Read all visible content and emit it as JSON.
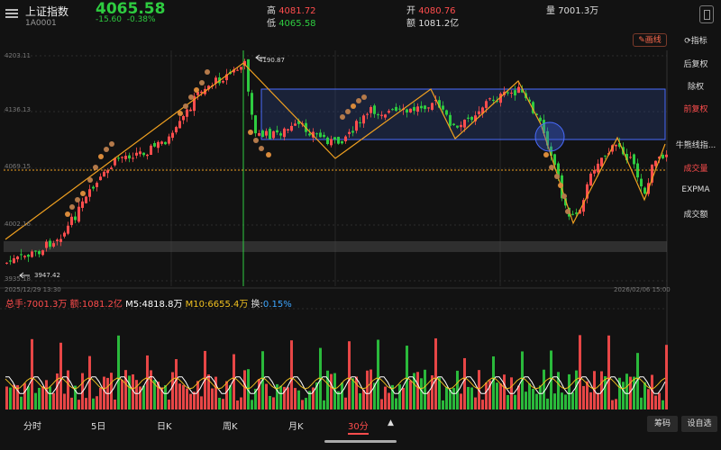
{
  "header": {
    "title": "上证指数",
    "code": "1A0001",
    "price": "4065.58",
    "change": "-15.60",
    "change_pct": "-0.38%",
    "high_label": "高",
    "high": "4081.72",
    "low_label": "低",
    "low": "4065.58",
    "open_label": "开",
    "open": "4080.76",
    "amount_label": "额",
    "amount": "1081.2亿",
    "volume_label": "量",
    "volume": "7001.3万"
  },
  "toolbar": {
    "draw_label": "画线"
  },
  "sidebar": {
    "indicator_label": "指标",
    "items": [
      {
        "label": "后复权",
        "active": false
      },
      {
        "label": "除权",
        "active": false
      },
      {
        "label": "前复权",
        "active": true
      },
      {
        "label": "牛熊线指...",
        "active": false
      },
      {
        "label": "成交量",
        "active": true
      },
      {
        "label": "EXPMA",
        "active": false
      },
      {
        "label": "成交额",
        "active": false
      }
    ]
  },
  "price_axis": [
    "4203.11",
    "4136.13",
    "4069.15",
    "4002.16",
    "3935.18"
  ],
  "annotations": {
    "high_mark": "4190.87",
    "low_mark": "3947.42"
  },
  "dates": {
    "start": "2025/12/29 13:30",
    "end": "2026/02/06 15:00"
  },
  "volume_legend": {
    "total": "总手:7001.3万",
    "amount": "额:1081.2亿",
    "m5": "M5:4818.8万",
    "m10": "M10:6655.4万",
    "turnover_label": "换:",
    "turnover": "0.15%"
  },
  "tabs": [
    {
      "label": "分时",
      "active": false
    },
    {
      "label": "5日",
      "active": false
    },
    {
      "label": "日K",
      "active": false
    },
    {
      "label": "周K",
      "active": false
    },
    {
      "label": "月K",
      "active": false
    },
    {
      "label": "30分",
      "active": true
    }
  ],
  "bottom_buttons": {
    "chips": "筹码",
    "settings": "设自选"
  },
  "colors": {
    "up": "#ff4d4d",
    "down": "#2ecc40",
    "trend": "#f0a020",
    "box": "#3b5bdb",
    "turnover": "#3da6ff"
  }
}
